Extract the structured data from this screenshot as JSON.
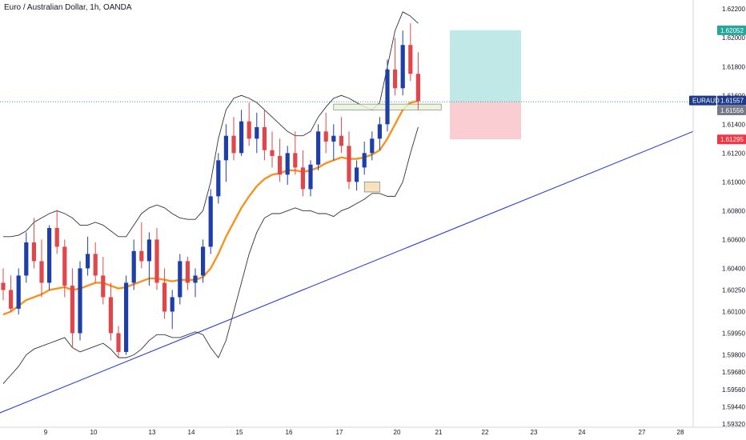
{
  "header": {
    "title": "Euro / Australian Dollar, 1h, OANDA"
  },
  "colors": {
    "up": "#1e3fa8",
    "down": "#e0464a",
    "ema": "#f7931e",
    "bollinger": "#333333",
    "trendline": "#2f3fd6",
    "profit_zone": "#b8e6e3",
    "loss_zone": "#f8c8cc",
    "take_profit_tag": "#26a69a",
    "symbol_tag": "#1e3a8a",
    "price_tag": "#787b86",
    "stop_tag": "#f23645"
  },
  "price_tags": {
    "take_profit": "1.62052",
    "symbol": "EURAUD",
    "last": "1.61557",
    "entry": "1.61556",
    "stop": "1.61295"
  },
  "chart_data": {
    "type": "candlestick",
    "title": "Euro / Australian Dollar, 1h, OANDA",
    "symbol": "EURAUD",
    "exchange": "OANDA",
    "interval": "1h",
    "y_ticks": [
      1.622,
      1.62,
      1.618,
      1.616,
      1.614,
      1.612,
      1.61,
      1.608,
      1.606,
      1.604,
      1.6025,
      1.601,
      1.5995,
      1.598,
      1.5968,
      1.5956,
      1.5944,
      1.5932
    ],
    "y_tick_labels": [
      "1.62200",
      "1.62000",
      "1.61800",
      "1.61600",
      "1.61400",
      "1.61200",
      "1.61000",
      "1.60800",
      "1.60600",
      "1.60400",
      "1.60250",
      "1.60100",
      "1.59950",
      "1.59800",
      "1.59680",
      "1.59560",
      "1.59440",
      "1.59320"
    ],
    "x_tick_labels": [
      "9",
      "10",
      "13",
      "14",
      "15",
      "16",
      "17",
      "20",
      "21",
      "22",
      "23",
      "24",
      "27",
      "28"
    ],
    "x_tick_positions": [
      0,
      10,
      20,
      30,
      40,
      50,
      60,
      70,
      80,
      90,
      100,
      110,
      120,
      130
    ],
    "candles": [
      [
        0,
        1.603,
        1.604,
        1.6018,
        1.6025
      ],
      [
        1,
        1.6025,
        1.6035,
        1.601,
        1.6012
      ],
      [
        2,
        1.6012,
        1.604,
        1.6008,
        1.6035
      ],
      [
        3,
        1.6035,
        1.6065,
        1.603,
        1.6058
      ],
      [
        4,
        1.6058,
        1.6075,
        1.604,
        1.6045
      ],
      [
        5,
        1.6045,
        1.606,
        1.602,
        1.603
      ],
      [
        6,
        1.603,
        1.607,
        1.6025,
        1.6068
      ],
      [
        7,
        1.6068,
        1.608,
        1.605,
        1.6055
      ],
      [
        8,
        1.6055,
        1.606,
        1.602,
        1.6028
      ],
      [
        9,
        1.6028,
        1.604,
        1.5985,
        1.5995
      ],
      [
        10,
        1.5995,
        1.6045,
        1.599,
        1.604
      ],
      [
        11,
        1.604,
        1.6062,
        1.6035,
        1.605
      ],
      [
        12,
        1.605,
        1.6058,
        1.603,
        1.6035
      ],
      [
        13,
        1.6035,
        1.6048,
        1.6015,
        1.602
      ],
      [
        14,
        1.602,
        1.603,
        1.599,
        1.5995
      ],
      [
        15,
        1.5995,
        1.6,
        1.5978,
        1.5982
      ],
      [
        16,
        1.5982,
        1.6035,
        1.598,
        1.603
      ],
      [
        17,
        1.603,
        1.606,
        1.6025,
        1.6052
      ],
      [
        18,
        1.6052,
        1.6072,
        1.604,
        1.6045
      ],
      [
        19,
        1.6045,
        1.6065,
        1.6028,
        1.606
      ],
      [
        20,
        1.606,
        1.6068,
        1.6025,
        1.603
      ],
      [
        21,
        1.603,
        1.604,
        1.6005,
        1.601
      ],
      [
        22,
        1.601,
        1.6025,
        1.5998,
        1.602
      ],
      [
        23,
        1.602,
        1.605,
        1.6015,
        1.6045
      ],
      [
        24,
        1.6045,
        1.6048,
        1.6025,
        1.603
      ],
      [
        25,
        1.603,
        1.604,
        1.602,
        1.6035
      ],
      [
        26,
        1.6035,
        1.606,
        1.603,
        1.6055
      ],
      [
        27,
        1.6055,
        1.6095,
        1.605,
        1.609
      ],
      [
        28,
        1.609,
        1.612,
        1.6085,
        1.6115
      ],
      [
        29,
        1.6115,
        1.614,
        1.61,
        1.6132
      ],
      [
        30,
        1.6132,
        1.6145,
        1.6115,
        1.612
      ],
      [
        31,
        1.612,
        1.615,
        1.6118,
        1.6142
      ],
      [
        32,
        1.6142,
        1.6155,
        1.6125,
        1.613
      ],
      [
        33,
        1.613,
        1.6148,
        1.612,
        1.6138
      ],
      [
        34,
        1.6138,
        1.615,
        1.6115,
        1.6122
      ],
      [
        35,
        1.6122,
        1.6135,
        1.611,
        1.6118
      ],
      [
        36,
        1.6118,
        1.613,
        1.61,
        1.6105
      ],
      [
        37,
        1.6105,
        1.6125,
        1.6098,
        1.612
      ],
      [
        38,
        1.612,
        1.6135,
        1.6105,
        1.611
      ],
      [
        39,
        1.611,
        1.6122,
        1.609,
        1.6095
      ],
      [
        40,
        1.6095,
        1.6115,
        1.609,
        1.6112
      ],
      [
        41,
        1.6112,
        1.614,
        1.6108,
        1.6135
      ],
      [
        42,
        1.6135,
        1.6148,
        1.612,
        1.6128
      ],
      [
        43,
        1.6128,
        1.614,
        1.6115,
        1.6132
      ],
      [
        44,
        1.6132,
        1.6145,
        1.612,
        1.6125
      ],
      [
        45,
        1.6125,
        1.6135,
        1.6095,
        1.61
      ],
      [
        46,
        1.61,
        1.6115,
        1.6094,
        1.611
      ],
      [
        47,
        1.611,
        1.6128,
        1.6105,
        1.612
      ],
      [
        48,
        1.612,
        1.6135,
        1.6115,
        1.613
      ],
      [
        49,
        1.613,
        1.6145,
        1.6122,
        1.614
      ],
      [
        50,
        1.614,
        1.6185,
        1.6135,
        1.6178
      ],
      [
        51,
        1.6178,
        1.62,
        1.616,
        1.6165
      ],
      [
        52,
        1.6165,
        1.6205,
        1.616,
        1.6195
      ],
      [
        53,
        1.6195,
        1.621,
        1.617,
        1.6175
      ],
      [
        54,
        1.6175,
        1.619,
        1.615,
        1.6156
      ]
    ],
    "ema": [
      1.6008,
      1.601,
      1.6014,
      1.6018,
      1.602,
      1.6022,
      1.6025,
      1.6026,
      1.6027,
      1.6025,
      1.6026,
      1.6028,
      1.603,
      1.603,
      1.6028,
      1.6026,
      1.6027,
      1.6029,
      1.6031,
      1.6033,
      1.6033,
      1.6032,
      1.6031,
      1.6032,
      1.6032,
      1.6032,
      1.6034,
      1.604,
      1.605,
      1.6062,
      1.6072,
      1.6082,
      1.609,
      1.6097,
      1.6102,
      1.6105,
      1.6106,
      1.6108,
      1.6108,
      1.6107,
      1.6108,
      1.611,
      1.6113,
      1.6115,
      1.6117,
      1.6116,
      1.6116,
      1.6117,
      1.6119,
      1.6122,
      1.613,
      1.614,
      1.615,
      1.6155,
      1.6156
    ],
    "bb_upper": [
      1.6062,
      1.6062,
      1.6063,
      1.6066,
      1.6072,
      1.6075,
      1.6078,
      1.608,
      1.6078,
      1.6075,
      1.607,
      1.607,
      1.6072,
      1.607,
      1.6066,
      1.6062,
      1.6062,
      1.607,
      1.6078,
      1.6082,
      1.6084,
      1.6082,
      1.6078,
      1.6075,
      1.6074,
      1.6074,
      1.608,
      1.61,
      1.613,
      1.615,
      1.6158,
      1.616,
      1.6158,
      1.6155,
      1.615,
      1.6145,
      1.614,
      1.6135,
      1.6132,
      1.6132,
      1.6135,
      1.6145,
      1.6152,
      1.6158,
      1.616,
      1.6158,
      1.6155,
      1.6152,
      1.615,
      1.6155,
      1.618,
      1.6205,
      1.6218,
      1.6215,
      1.621
    ],
    "bb_lower": [
      1.596,
      1.5966,
      1.5972,
      1.598,
      1.5984,
      1.5986,
      1.5988,
      1.599,
      1.5992,
      1.5985,
      1.5982,
      1.5984,
      1.5986,
      1.5988,
      1.5984,
      1.5978,
      1.5978,
      1.598,
      1.5984,
      1.599,
      1.5994,
      1.5994,
      1.5992,
      1.5992,
      1.5994,
      1.5996,
      1.5994,
      1.5985,
      1.5978,
      1.599,
      1.601,
      1.603,
      1.605,
      1.6065,
      1.6075,
      1.6078,
      1.6078,
      1.608,
      1.6082,
      1.608,
      1.608,
      1.6078,
      1.6078,
      1.6076,
      1.608,
      1.6082,
      1.6085,
      1.6088,
      1.6092,
      1.6092,
      1.609,
      1.609,
      1.61,
      1.612,
      1.6138
    ],
    "trendline": {
      "from": {
        "x": -4,
        "y": 1.5932
      },
      "to": {
        "x": 136,
        "y": 1.6235
      }
    },
    "position": {
      "entry": 1.61556,
      "take_profit": 1.62052,
      "stop": 1.61295,
      "x_start": 55,
      "x_end": 63
    },
    "marked_ranges": [
      {
        "x_start": 47,
        "x_end": 49,
        "y_low": 1.6093,
        "y_high": 1.61,
        "color": "#f5deb3"
      },
      {
        "x_start": 43,
        "x_end": 57,
        "y_low": 1.615,
        "y_high": 1.6154,
        "color": "#e9f5d6"
      }
    ],
    "ylim": [
      1.5932,
      1.6235
    ],
    "grid": false
  }
}
